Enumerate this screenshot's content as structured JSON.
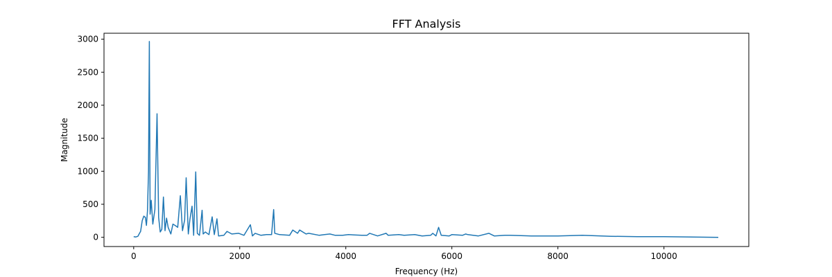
{
  "chart_data": {
    "type": "line",
    "title": "FFT Analysis",
    "xlabel": "Frequency (Hz)",
    "ylabel": "Magnitude",
    "xlim": [
      -560,
      11600
    ],
    "ylim": [
      -140,
      3090
    ],
    "xticks": [
      0,
      2000,
      4000,
      6000,
      8000,
      10000
    ],
    "yticks": [
      0,
      500,
      1000,
      1500,
      2000,
      2500,
      3000
    ],
    "grid": false,
    "line_color": "#1f77b4",
    "series": [
      {
        "x": [
          0,
          40,
          80,
          110,
          130,
          160,
          190,
          220,
          240,
          260,
          280,
          295,
          310,
          330,
          360,
          400,
          440,
          470,
          500,
          530,
          560,
          590,
          620,
          650,
          700,
          740,
          780,
          830,
          880,
          920,
          960,
          990,
          1030,
          1060,
          1100,
          1130,
          1170,
          1200,
          1240,
          1290,
          1310,
          1350,
          1420,
          1480,
          1520,
          1570,
          1600,
          1700,
          1760,
          1850,
          1980,
          2080,
          2200,
          2240,
          2290,
          2400,
          2500,
          2600,
          2640,
          2660,
          2750,
          2940,
          3000,
          3090,
          3130,
          3250,
          3300,
          3500,
          3600,
          3700,
          3800,
          3940,
          4050,
          4300,
          4400,
          4450,
          4600,
          4760,
          4800,
          5000,
          5100,
          5300,
          5440,
          5600,
          5640,
          5700,
          5750,
          5800,
          5950,
          6000,
          6200,
          6260,
          6300,
          6500,
          6700,
          6800,
          7000,
          7100,
          7500,
          8000,
          8460,
          9000,
          9500,
          10000,
          10500,
          11025
        ],
        "y": [
          10,
          5,
          15,
          60,
          90,
          250,
          320,
          300,
          180,
          400,
          1000,
          2965,
          350,
          560,
          200,
          420,
          1870,
          300,
          80,
          120,
          610,
          100,
          290,
          150,
          50,
          200,
          180,
          150,
          630,
          100,
          260,
          900,
          50,
          270,
          470,
          30,
          990,
          60,
          30,
          410,
          50,
          80,
          40,
          310,
          40,
          280,
          20,
          30,
          90,
          50,
          60,
          30,
          190,
          20,
          60,
          30,
          40,
          40,
          420,
          60,
          40,
          30,
          110,
          60,
          110,
          50,
          60,
          30,
          40,
          50,
          30,
          30,
          40,
          30,
          30,
          60,
          20,
          60,
          30,
          40,
          30,
          40,
          20,
          30,
          60,
          20,
          150,
          30,
          20,
          40,
          30,
          50,
          40,
          20,
          60,
          20,
          30,
          30,
          20,
          20,
          30,
          15,
          10,
          10,
          5,
          0
        ]
      }
    ]
  }
}
